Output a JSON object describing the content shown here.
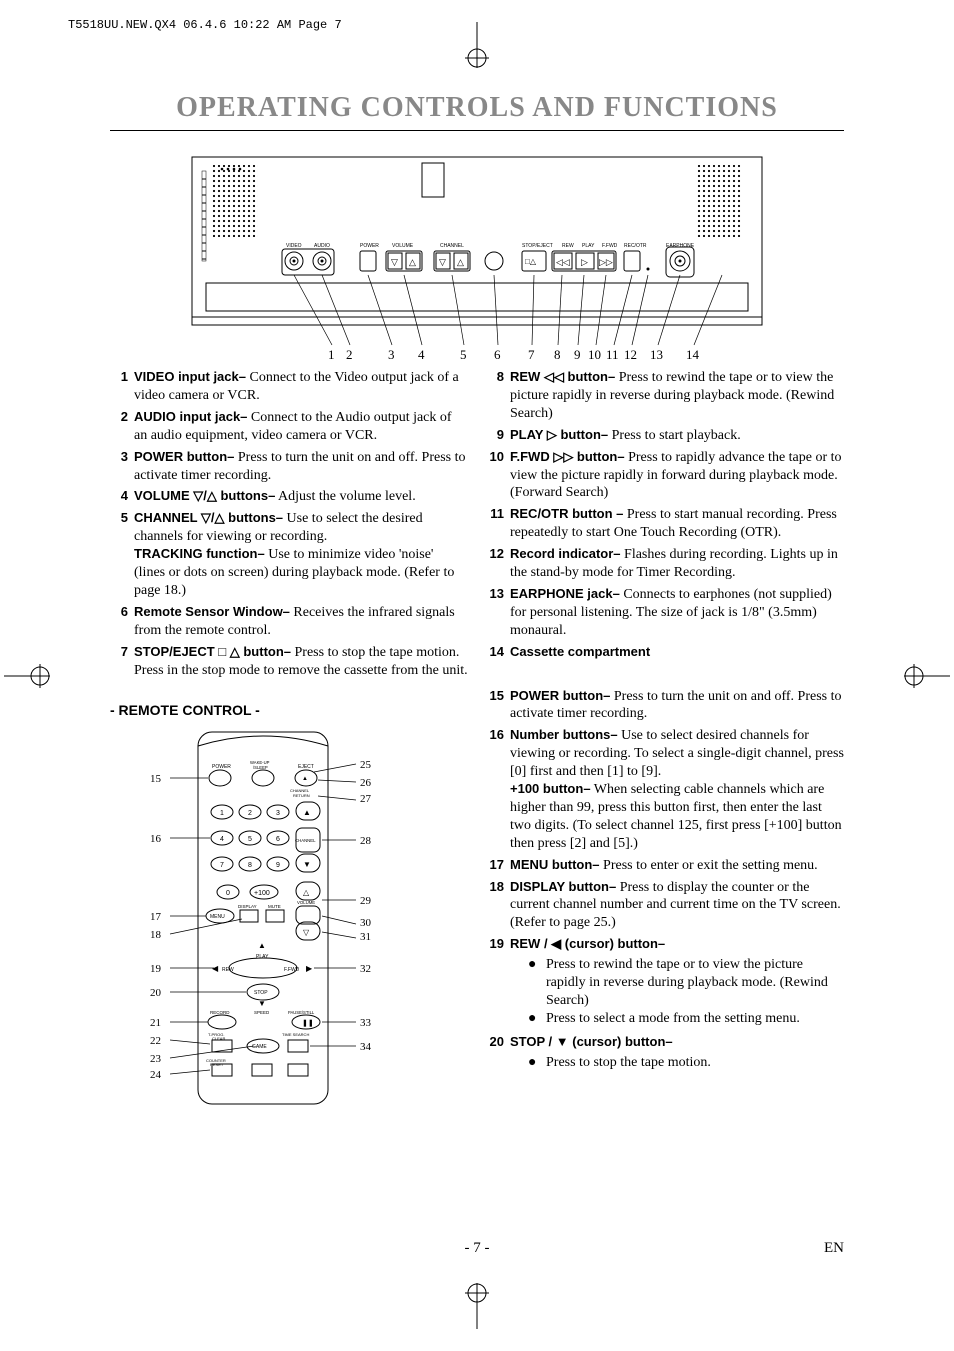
{
  "printHeader": "T5518UU.NEW.QX4  06.4.6  10:22 AM  Page 7",
  "title": "OPERATING CONTROLS AND FUNCTIONS",
  "deviceDiagram": {
    "panelLabels": [
      "VIDEO",
      "AUDIO",
      "POWER",
      "VOLUME",
      "CHANNEL",
      "STOP/EJECT",
      "REW",
      "PLAY",
      "F.FWD",
      "REC/OTR",
      "EARPHONE"
    ],
    "callouts": [
      "1",
      "2",
      "3",
      "4",
      "5",
      "6",
      "7",
      "8",
      "9",
      "10",
      "11",
      "12",
      "13",
      "14"
    ]
  },
  "leftItems": [
    {
      "n": "1",
      "label": "VIDEO input jack–",
      "text": " Connect to the Video output jack of a video camera or VCR."
    },
    {
      "n": "2",
      "label": "AUDIO input jack–",
      "text": " Connect to the Audio output jack of an audio equipment, video camera or VCR."
    },
    {
      "n": "3",
      "label": "POWER button–",
      "text": " Press to turn the unit on and off. Press to activate timer recording."
    },
    {
      "n": "4",
      "label": "VOLUME ▽/△ buttons–",
      "text": " Adjust the volume level."
    },
    {
      "n": "5",
      "label": "CHANNEL ▽/△ buttons–",
      "text": " Use to select the desired channels for viewing or recording.",
      "sub": {
        "label": "TRACKING function–",
        "text": " Use to minimize video 'noise' (lines or dots on screen) during playback mode. (Refer to page 18.)"
      }
    },
    {
      "n": "6",
      "label": "Remote Sensor Window–",
      "text": " Receives the infrared signals from the remote control."
    },
    {
      "n": "7",
      "label": "STOP/EJECT □ △ button–",
      "text": " Press to stop the tape motion. Press in the stop mode to remove the cassette from the unit."
    }
  ],
  "rightItems": [
    {
      "n": "8",
      "label": "REW ◁◁ button–",
      "text": " Press to rewind the tape or to view the picture rapidly in reverse during playback mode. (Rewind Search)"
    },
    {
      "n": "9",
      "label": "PLAY ▷ button–",
      "text": " Press to start playback."
    },
    {
      "n": "10",
      "label": "F.FWD ▷▷ button–",
      "text": " Press to rapidly advance the tape or to view the picture rapidly in forward during playback mode. (Forward Search)"
    },
    {
      "n": "11",
      "label": "REC/OTR button –",
      "text": " Press to start manual recording. Press repeatedly to start One Touch Recording (OTR)."
    },
    {
      "n": "12",
      "label": "Record indicator–",
      "text": " Flashes during recording. Lights up in the stand-by mode for Timer Recording."
    },
    {
      "n": "13",
      "label": "EARPHONE jack–",
      "text": " Connects to earphones (not supplied) for personal listening. The size of jack is 1/8\" (3.5mm) monaural."
    },
    {
      "n": "14",
      "label": "Cassette compartment",
      "text": ""
    }
  ],
  "remoteHeading": "- REMOTE CONTROL -",
  "remoteDiagram": {
    "buttons": [
      "POWER",
      "WAKE-UP/SLEEP",
      "EJECT",
      "CHANNEL RETURN",
      "1",
      "2",
      "3",
      "4",
      "5",
      "6",
      "7",
      "8",
      "9",
      "0",
      "+100",
      "CHANNEL",
      "MENU",
      "DISPLAY",
      "MUTE",
      "VOLUME",
      "PLAY",
      "REW",
      "F.FWD",
      "STOP",
      "RECORD",
      "SPEED",
      "PAUSE/STILL",
      "T-PROG. CLEAR",
      "GAME",
      "TIME SEARCH",
      "COUNTER RESET"
    ],
    "leftCallouts": [
      "15",
      "16",
      "17",
      "18",
      "19",
      "20",
      "21",
      "22",
      "23",
      "24"
    ],
    "rightCallouts": [
      "25",
      "26",
      "27",
      "28",
      "29",
      "30",
      "31",
      "32",
      "33",
      "34"
    ]
  },
  "remoteItems": [
    {
      "n": "15",
      "label": "POWER button–",
      "text": " Press to turn the unit on and off. Press to activate timer recording."
    },
    {
      "n": "16",
      "label": "Number buttons–",
      "text": " Use to select desired channels for viewing or recording. To select a single-digit channel, press [0] first and then [1] to [9].",
      "sub": {
        "label": "+100 button–",
        "text": " When selecting cable channels which are higher than 99, press this button first, then enter the last two digits. (To select channel 125, first press [+100] button then press [2] and [5].)"
      }
    },
    {
      "n": "17",
      "label": "MENU button–",
      "text": " Press to enter or exit the setting menu."
    },
    {
      "n": "18",
      "label": "DISPLAY button–",
      "text": " Press to display the counter or the current channel number and current time on the TV screen. (Refer to page 25.)"
    },
    {
      "n": "19",
      "label": "REW / ◀ (cursor) button–",
      "bullets": [
        "Press to rewind the tape or to view the picture rapidly in reverse during playback mode. (Rewind Search)",
        "Press to select a mode from the setting menu."
      ]
    },
    {
      "n": "20",
      "label": "STOP / ▼ (cursor) button–",
      "bullets": [
        "Press to stop the tape motion."
      ]
    }
  ],
  "footer": {
    "page": "- 7 -",
    "lang": "EN"
  }
}
